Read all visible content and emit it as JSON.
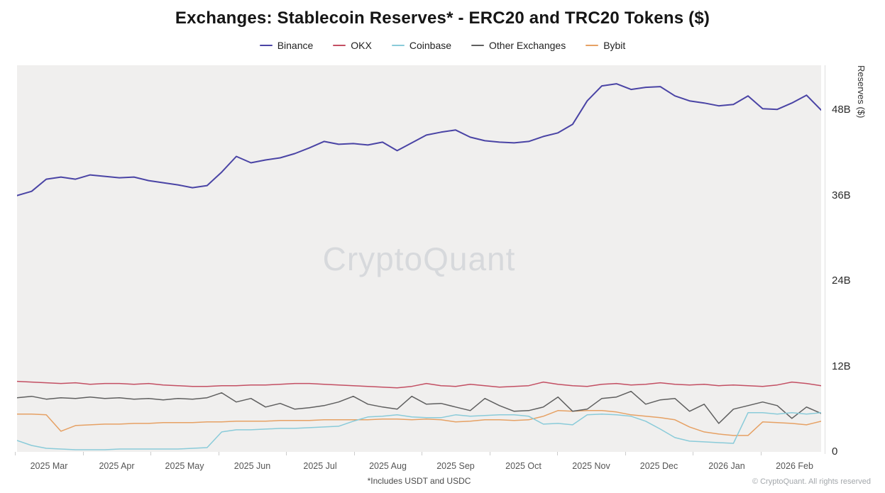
{
  "header": {
    "title": "Exchanges: Stablecoin Reserves* - ERC20 and TRC20 Tokens ($)"
  },
  "legend": {
    "position": "top",
    "items": [
      {
        "id": "binance",
        "label": "Binance",
        "color": "#4a44a5"
      },
      {
        "id": "okx",
        "label": "OKX",
        "color": "#c34f63"
      },
      {
        "id": "coinbase",
        "label": "Coinbase",
        "color": "#8acbd9"
      },
      {
        "id": "other-exchanges",
        "label": "Other Exchanges",
        "color": "#5f5f5f"
      },
      {
        "id": "bybit",
        "label": "Bybit",
        "color": "#e6a164"
      }
    ]
  },
  "watermark": "CryptoQuant",
  "chart_data": {
    "type": "line",
    "title": "Exchanges: Stablecoin Reserves* - ERC20 and TRC20 Tokens ($)",
    "ylabel": "Reserves ($)",
    "unit": "billions of USD",
    "ylim": [
      0,
      54.3
    ],
    "grid": false,
    "legend_position": "top",
    "y_ticks": [
      {
        "value": 0,
        "label": "0"
      },
      {
        "value": 12,
        "label": "12B"
      },
      {
        "value": 24,
        "label": "24B"
      },
      {
        "value": 36,
        "label": "36B"
      },
      {
        "value": 48,
        "label": "48B"
      }
    ],
    "x_tick_labels": [
      "2025 Mar",
      "2025 Apr",
      "2025 May",
      "2025 Jun",
      "2025 Jul",
      "2025 Aug",
      "2025 Sep",
      "2025 Oct",
      "2025 Nov",
      "2025 Dec",
      "2026 Jan",
      "2026 Feb"
    ],
    "x_sampling": "56 points at equal ~weekly intervals, late Feb 2025 to mid Feb 2026",
    "series": [
      {
        "id": "binance",
        "name": "Binance",
        "color": "#4a44a5",
        "values": [
          36.0,
          36.6,
          38.3,
          38.6,
          38.3,
          38.9,
          38.7,
          38.5,
          38.6,
          38.1,
          37.8,
          37.5,
          37.1,
          37.4,
          39.3,
          41.5,
          40.6,
          41.0,
          41.3,
          41.9,
          42.7,
          43.6,
          43.2,
          43.3,
          43.1,
          43.5,
          42.3,
          43.4,
          44.5,
          44.9,
          45.2,
          44.2,
          43.7,
          43.5,
          43.4,
          43.6,
          44.3,
          44.8,
          46.0,
          49.3,
          51.4,
          51.7,
          50.9,
          51.2,
          51.3,
          50.0,
          49.3,
          49.0,
          48.6,
          48.8,
          50.0,
          48.2,
          48.1,
          49.0,
          50.1,
          48.0
        ]
      },
      {
        "id": "okx",
        "name": "OKX",
        "color": "#c34f63",
        "values": [
          9.9,
          9.8,
          9.7,
          9.6,
          9.7,
          9.5,
          9.6,
          9.6,
          9.5,
          9.6,
          9.4,
          9.3,
          9.2,
          9.2,
          9.3,
          9.3,
          9.4,
          9.4,
          9.5,
          9.6,
          9.6,
          9.5,
          9.4,
          9.3,
          9.2,
          9.1,
          9.0,
          9.2,
          9.6,
          9.3,
          9.2,
          9.5,
          9.3,
          9.1,
          9.2,
          9.3,
          9.8,
          9.5,
          9.3,
          9.2,
          9.5,
          9.6,
          9.4,
          9.5,
          9.7,
          9.5,
          9.4,
          9.5,
          9.3,
          9.4,
          9.3,
          9.2,
          9.4,
          9.8,
          9.6,
          9.3
        ]
      },
      {
        "id": "coinbase",
        "name": "Coinbase",
        "color": "#8acbd9",
        "values": [
          1.6,
          0.9,
          0.5,
          0.4,
          0.3,
          0.3,
          0.3,
          0.4,
          0.4,
          0.4,
          0.4,
          0.4,
          0.5,
          0.6,
          2.8,
          3.1,
          3.1,
          3.2,
          3.3,
          3.3,
          3.4,
          3.5,
          3.6,
          4.3,
          4.9,
          5.0,
          5.2,
          4.9,
          4.8,
          4.8,
          5.2,
          5.0,
          5.1,
          5.2,
          5.2,
          5.0,
          3.9,
          4.0,
          3.8,
          5.2,
          5.3,
          5.2,
          5.0,
          4.3,
          3.2,
          2.0,
          1.5,
          1.4,
          1.3,
          1.2,
          5.5,
          5.5,
          5.3,
          5.5,
          5.3,
          5.5
        ]
      },
      {
        "id": "other-exchanges",
        "name": "Other Exchanges",
        "color": "#5f5f5f",
        "values": [
          7.6,
          7.8,
          7.4,
          7.6,
          7.5,
          7.7,
          7.5,
          7.6,
          7.4,
          7.5,
          7.3,
          7.5,
          7.4,
          7.6,
          8.3,
          7.0,
          7.5,
          6.3,
          6.8,
          6.0,
          6.2,
          6.5,
          7.0,
          7.8,
          6.7,
          6.3,
          6.0,
          7.8,
          6.7,
          6.8,
          6.3,
          5.8,
          7.5,
          6.5,
          5.7,
          5.8,
          6.3,
          7.7,
          5.7,
          6.0,
          7.5,
          7.7,
          8.5,
          6.7,
          7.3,
          7.5,
          5.7,
          6.7,
          4.0,
          6.0,
          6.5,
          7.0,
          6.5,
          4.7,
          6.3,
          5.4
        ]
      },
      {
        "id": "bybit",
        "name": "Bybit",
        "color": "#e6a164",
        "values": [
          5.3,
          5.3,
          5.2,
          2.9,
          3.7,
          3.8,
          3.9,
          3.9,
          4.0,
          4.0,
          4.1,
          4.1,
          4.1,
          4.2,
          4.2,
          4.3,
          4.3,
          4.3,
          4.4,
          4.4,
          4.4,
          4.5,
          4.5,
          4.5,
          4.5,
          4.6,
          4.6,
          4.5,
          4.6,
          4.5,
          4.2,
          4.3,
          4.5,
          4.5,
          4.4,
          4.5,
          5.0,
          5.8,
          5.7,
          5.8,
          5.8,
          5.6,
          5.2,
          5.0,
          4.8,
          4.5,
          3.5,
          2.8,
          2.5,
          2.3,
          2.3,
          4.2,
          4.1,
          4.0,
          3.8,
          4.3
        ]
      }
    ]
  },
  "footer": {
    "footnote": "*Includes USDT and USDC",
    "copyright": "© CryptoQuant. All rights reserved"
  }
}
